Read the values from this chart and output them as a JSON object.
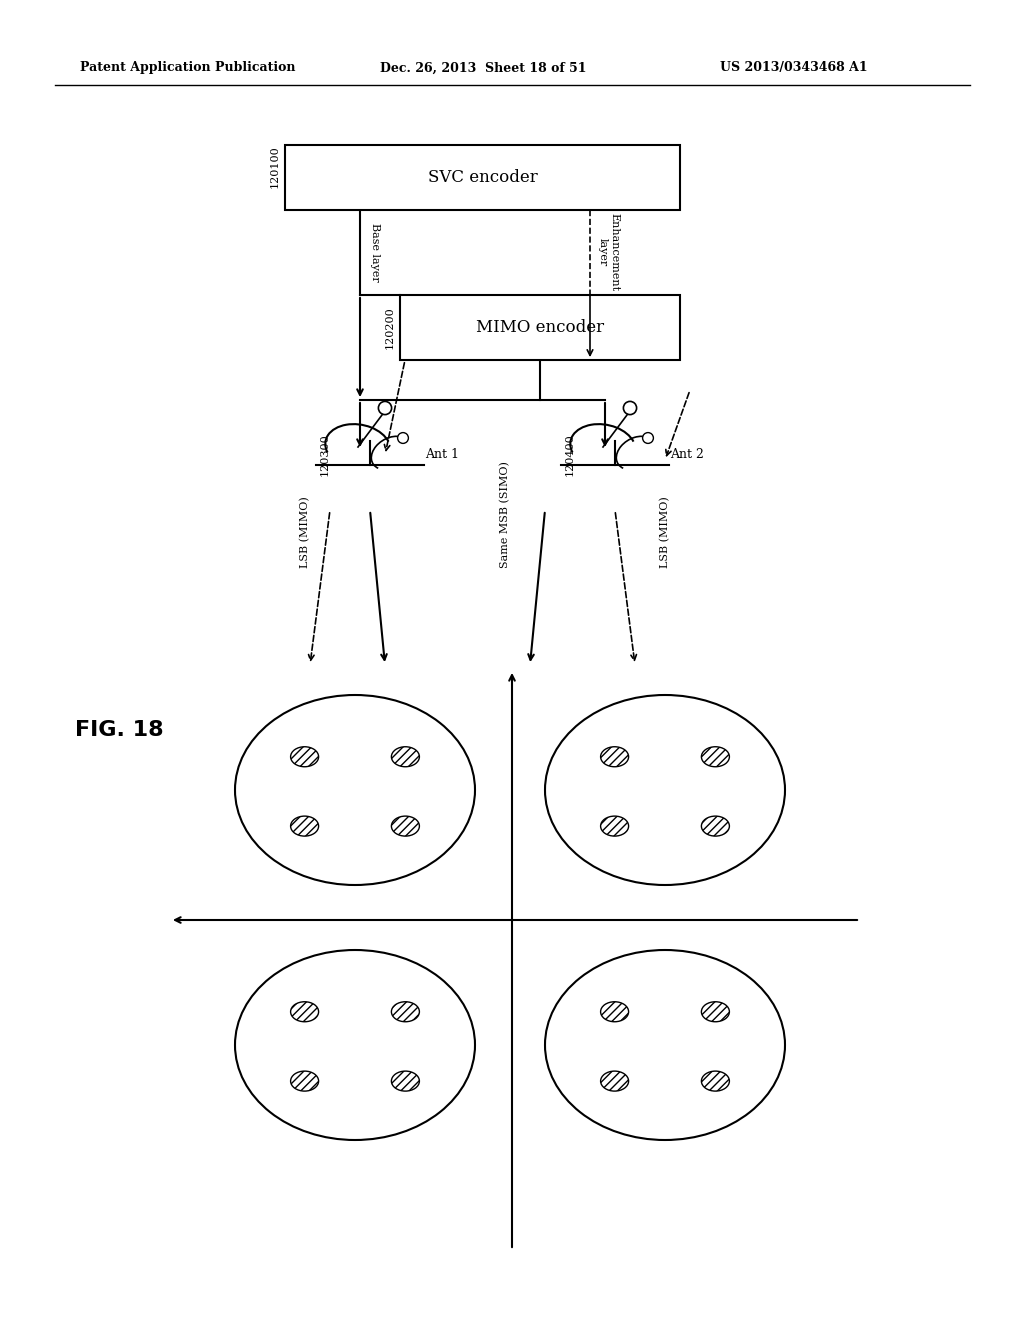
{
  "bg_color": "#ffffff",
  "header_left": "Patent Application Publication",
  "header_mid": "Dec. 26, 2013  Sheet 18 of 51",
  "header_right": "US 2013/0343468 A1",
  "fig_label": "FIG. 18",
  "svc_label": "SVC encoder",
  "svc_id": "120100",
  "mimo_label": "MIMO encoder",
  "mimo_id": "120200",
  "ant1_label": "Ant 1",
  "ant1_id": "120300",
  "ant2_label": "Ant 2",
  "ant2_id": "120400",
  "base_layer": "Base layer",
  "enhancement_layer": "Enhancement\nlayer",
  "lsb_mimo_left": "LSB (MIMO)",
  "same_msb": "Same MSB (SIMO)",
  "lsb_mimo_right": "LSB (MIMO)"
}
